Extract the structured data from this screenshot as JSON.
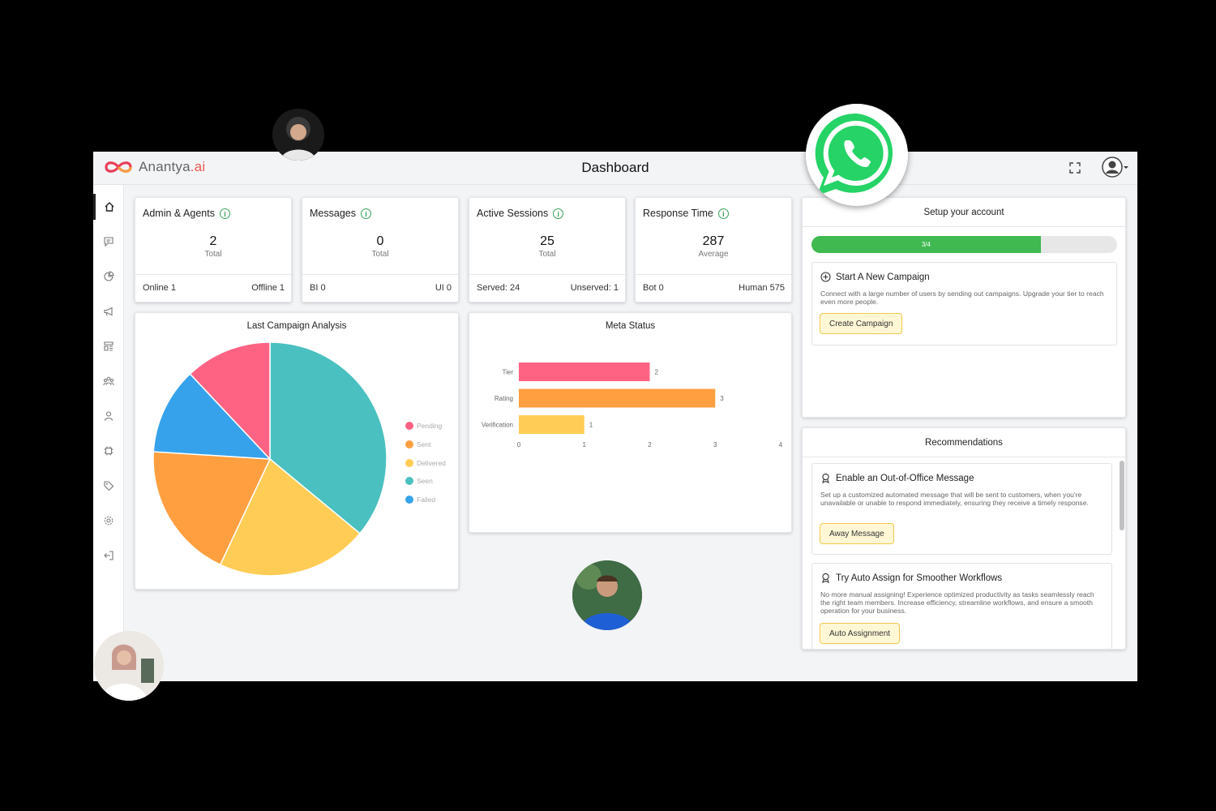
{
  "brand": {
    "name_main": "Anantya",
    "name_suffix": ".ai"
  },
  "header": {
    "title": "Dashboard"
  },
  "icons": {
    "sidebar": [
      "home-icon",
      "chat-icon",
      "pie-chart-icon",
      "megaphone-icon",
      "layout-icon",
      "users-icon",
      "user-icon",
      "bot-icon",
      "tag-icon",
      "gear-icon",
      "logout-icon"
    ],
    "fullscreen": "expand-icon",
    "avatar": "user-avatar-icon"
  },
  "colors": {
    "accent_green": "#3fb950",
    "button_bg": "#fff7d6",
    "button_border": "#f2c94c"
  },
  "stats": [
    {
      "title": "Admin & Agents",
      "value": "2",
      "sub": "Total",
      "left": "Online 1",
      "right": "Offline 1"
    },
    {
      "title": "Messages",
      "value": "0",
      "sub": "Total",
      "left": "BI 0",
      "right": "UI 0"
    },
    {
      "title": "Active Sessions",
      "value": "25",
      "sub": "Total",
      "left": "Served: 24",
      "right": "Unserved: 1"
    },
    {
      "title": "Response Time",
      "value": "287",
      "sub": "Average",
      "left": "Bot 0",
      "right": "Human 575"
    }
  ],
  "chart_data": [
    {
      "type": "pie",
      "title": "Last Campaign Analysis",
      "categories": [
        "Pending",
        "Sent",
        "Delivered",
        "Seen",
        "Failed"
      ],
      "values": [
        12,
        19,
        21,
        36,
        12
      ],
      "colors": [
        "#ff6384",
        "#ff9f40",
        "#ffcd56",
        "#4bc0c0",
        "#36a2eb"
      ],
      "legend": "right"
    },
    {
      "type": "bar",
      "orientation": "horizontal",
      "title": "Meta Status",
      "categories": [
        "Tier",
        "Rating",
        "Verification"
      ],
      "values": [
        2,
        3,
        1
      ],
      "colors": [
        "#ff6384",
        "#ff9f40",
        "#ffcd56"
      ],
      "xlim": [
        0,
        4
      ],
      "xticks": [
        "0",
        "1",
        "2",
        "3",
        "4"
      ]
    }
  ],
  "setup": {
    "title": "Setup your account",
    "progress_label": "3/4",
    "progress_fraction": 0.75,
    "task": {
      "title": "Start A New Campaign",
      "description": "Connect with a large number of users by sending out campaigns. Upgrade your tier to reach even more people.",
      "button": "Create Campaign"
    }
  },
  "recommendations": {
    "title": "Recommendations",
    "items": [
      {
        "title": "Enable an Out-of-Office Message",
        "description": "Set up a customized automated message that will be sent to customers, when you're unavailable or unable to respond immediately, ensuring they receive a timely response.",
        "button": "Away Message"
      },
      {
        "title": "Try Auto Assign for Smoother Workflows",
        "description": "No more manual assigning! Experience optimized productivity as tasks seamlessly reach the right team members. Increase efficiency, streamline workflows, and ensure a smooth operation for your business.",
        "button": "Auto Assignment"
      }
    ]
  }
}
